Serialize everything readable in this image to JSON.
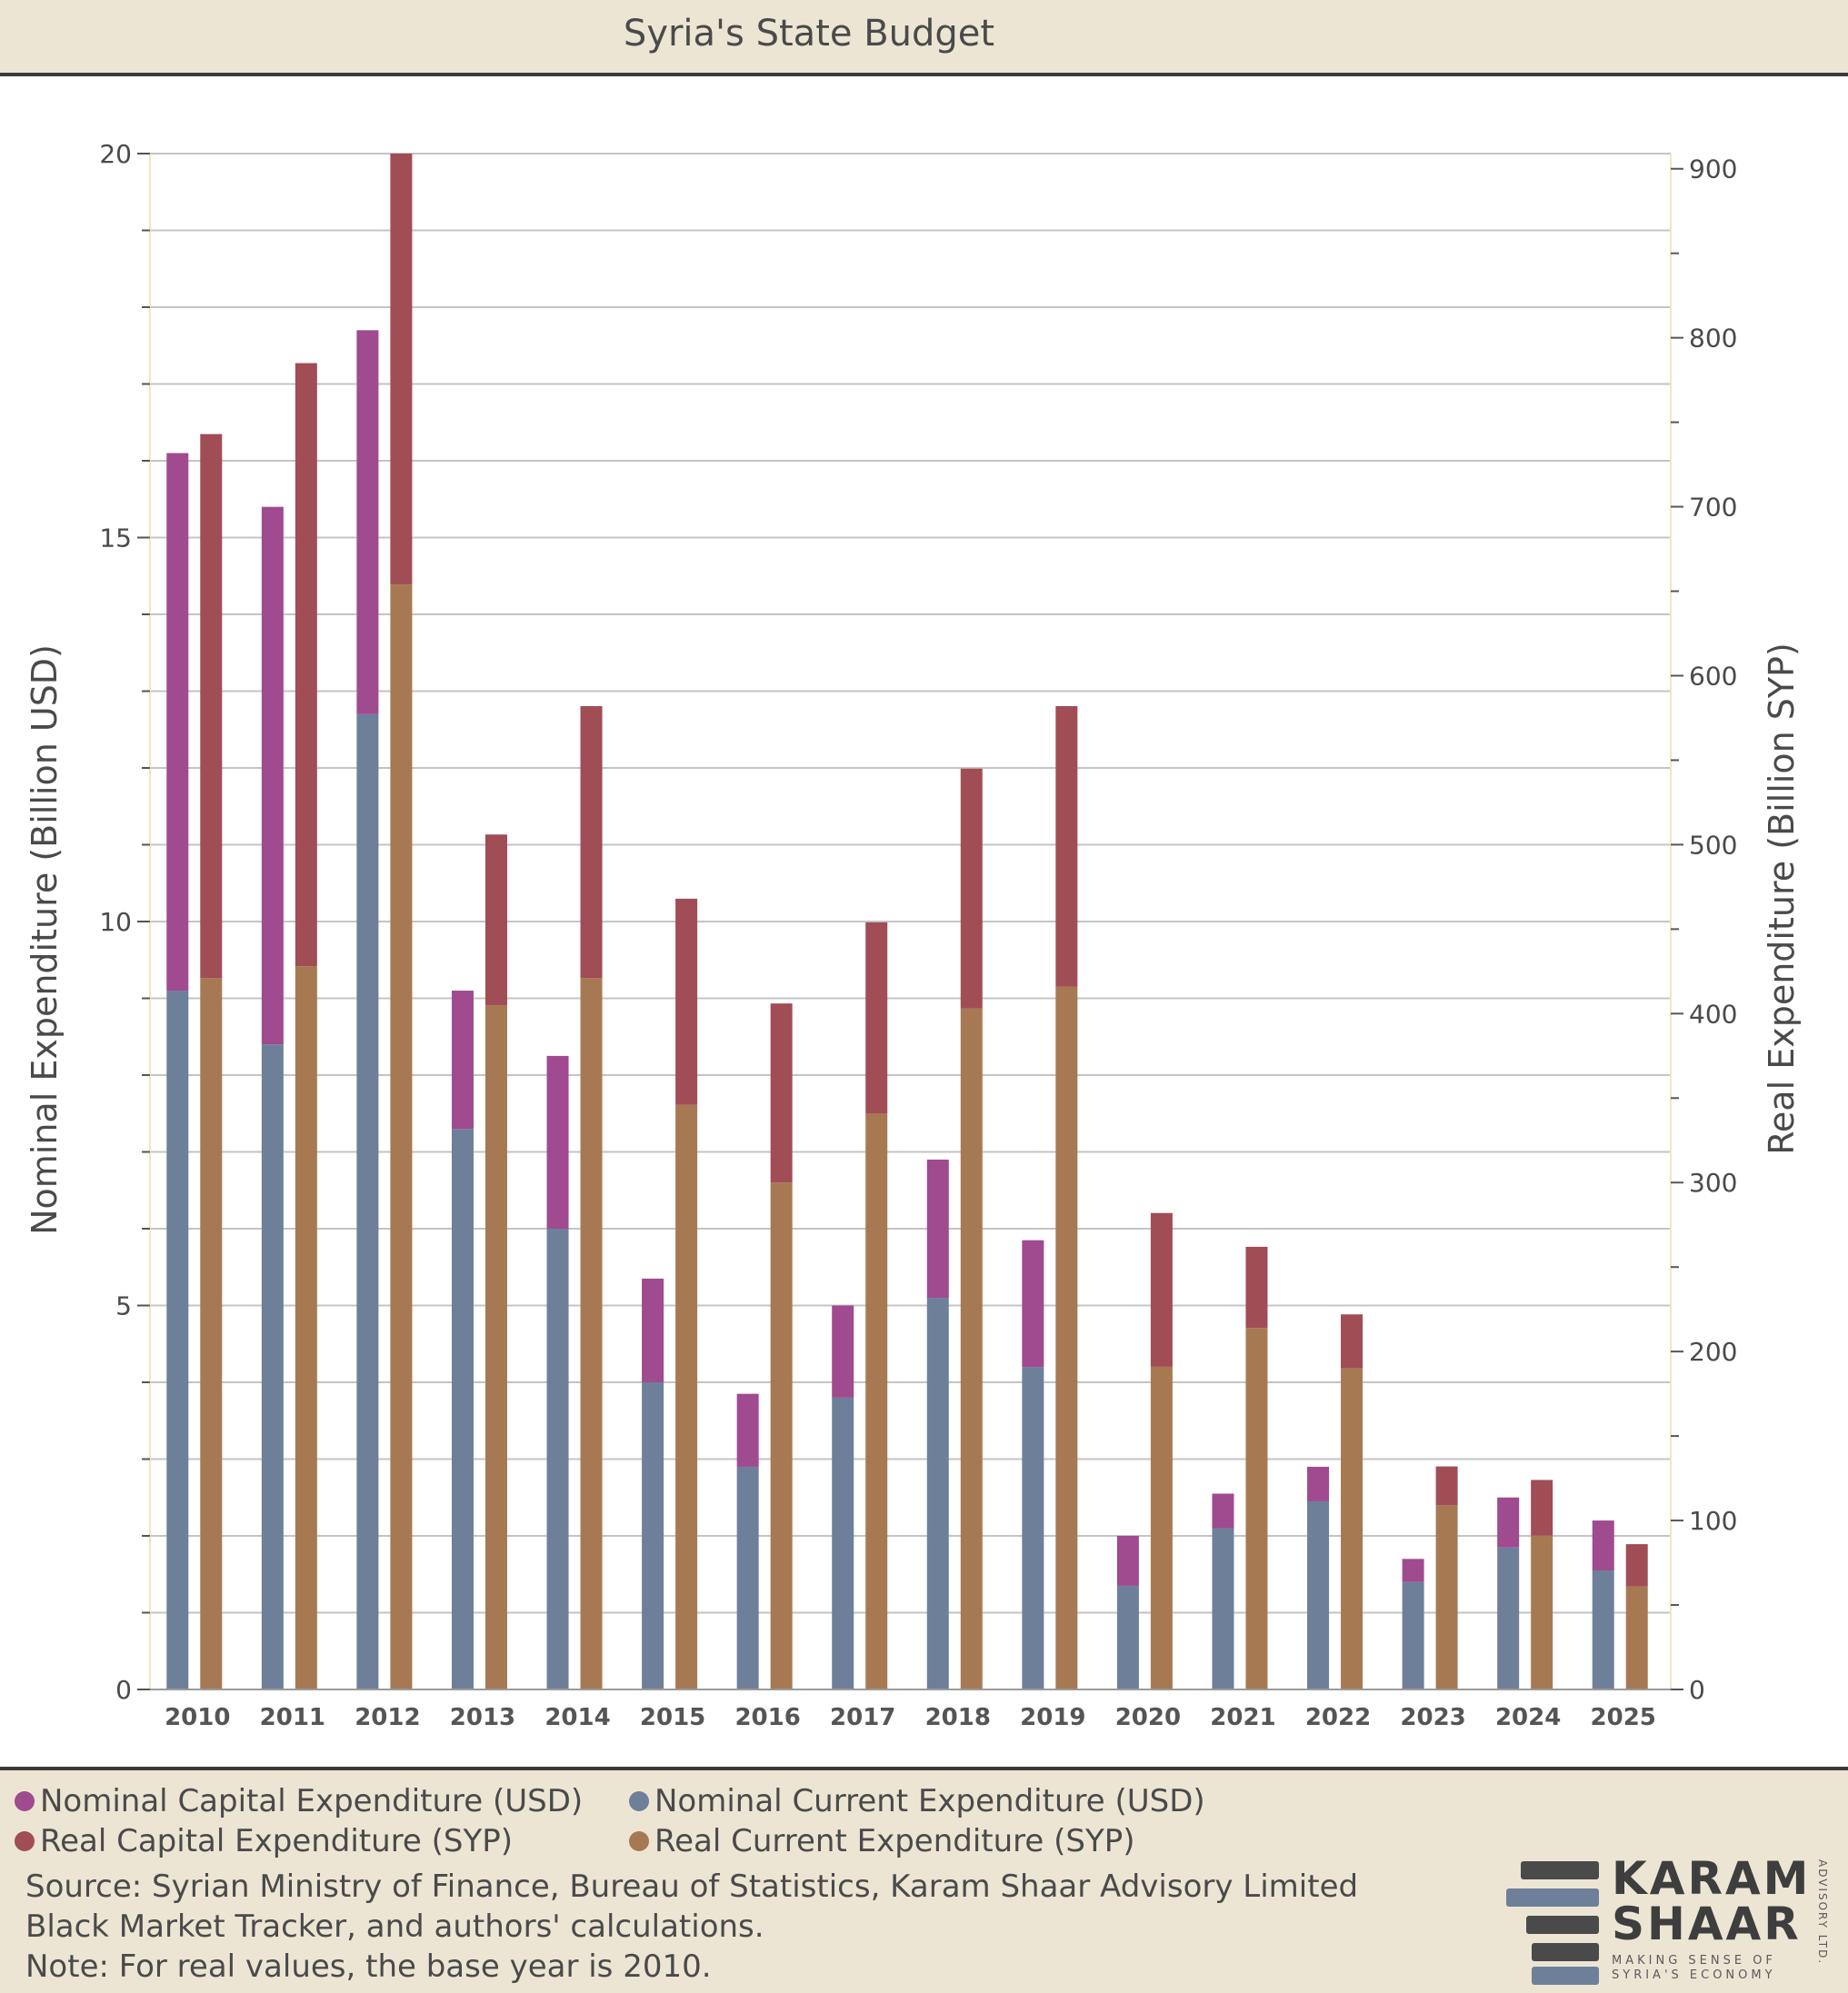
{
  "header": {
    "title": "Syria's State Budget"
  },
  "chart_data": {
    "type": "bar",
    "stacked": true,
    "categories": [
      "2010",
      "2011",
      "2012",
      "2013",
      "2014",
      "2015",
      "2016",
      "2017",
      "2018",
      "2019",
      "2020",
      "2021",
      "2022",
      "2023",
      "2024",
      "2025"
    ],
    "y_left": {
      "label": "Nominal Expenditure (Billion USD)",
      "ylim": [
        0,
        20
      ],
      "ticks": [
        0,
        5,
        10,
        15,
        20
      ]
    },
    "y_right": {
      "label": "Real Expenditure (Billion SYP)",
      "ylim": [
        0,
        909
      ],
      "ticks": [
        0,
        100,
        200,
        300,
        400,
        500,
        600,
        700,
        800,
        900
      ]
    },
    "grid": true,
    "legend_position": "bottom",
    "series": [
      {
        "name": "Nominal Current Expenditure (USD)",
        "axis": "left",
        "stack": "nominal",
        "color": "#6e7f9a",
        "values": [
          9.1,
          8.4,
          12.7,
          7.3,
          6.0,
          4.0,
          2.9,
          3.8,
          5.1,
          4.2,
          1.35,
          2.1,
          2.45,
          1.4,
          1.85,
          1.55
        ]
      },
      {
        "name": "Nominal Capital Expenditure (USD)",
        "axis": "left",
        "stack": "nominal",
        "color": "#a04a90",
        "values": [
          7.0,
          7.0,
          5.0,
          1.8,
          2.25,
          1.35,
          0.95,
          1.2,
          1.8,
          1.65,
          0.65,
          0.45,
          0.45,
          0.3,
          0.65,
          0.65
        ]
      },
      {
        "name": "Real Current Expenditure (SYP)",
        "axis": "right",
        "stack": "real",
        "color": "#a77953",
        "values": [
          421,
          428,
          654,
          405,
          421,
          346,
          300,
          341,
          403,
          416,
          191,
          214,
          190,
          109,
          91,
          61
        ]
      },
      {
        "name": "Real Capital Expenditure (SYP)",
        "axis": "right",
        "stack": "real",
        "color": "#a14d55",
        "values": [
          322,
          357,
          255,
          101,
          161,
          122,
          106,
          113,
          142,
          166,
          91,
          48,
          32,
          23,
          33,
          25
        ]
      }
    ]
  },
  "legend": {
    "items": [
      {
        "label": "Nominal Capital Expenditure (USD)",
        "color": "#a04a90"
      },
      {
        "label": "Nominal Current Expenditure (USD)",
        "color": "#6e7f9a"
      },
      {
        "label": "Real Capital Expenditure (SYP)",
        "color": "#a14d55"
      },
      {
        "label": "Real Current Expenditure (SYP)",
        "color": "#a77953"
      }
    ]
  },
  "footer": {
    "source_line1": "Source: Syrian Ministry of Finance, Bureau of Statistics, Karam Shaar Advisory Limited",
    "source_line2": "Black Market Tracker, and authors' calculations.",
    "note": "Note: For real values, the base year is 2010."
  },
  "logo": {
    "line1": "KARAM",
    "line2": "SHAAR",
    "tagline1": "MAKING SENSE OF",
    "tagline2": "SYRIA'S ECONOMY",
    "side": "ADVISORY LTD."
  }
}
